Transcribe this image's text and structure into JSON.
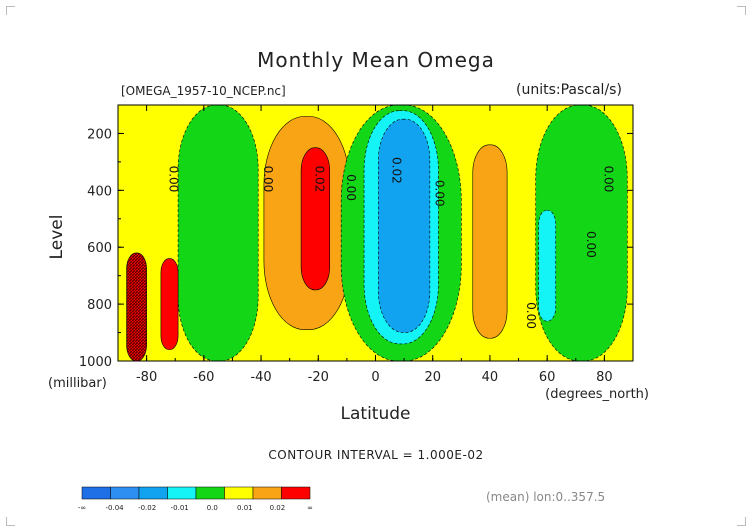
{
  "title": "Monthly Mean Omega",
  "file_label": "[OMEGA_1957-10_NCEP.nc]",
  "units_label": "(units:Pascal/s)",
  "contour_interval": "CONTOUR INTERVAL = 1.000E-02",
  "mean_note": "(mean) lon:0..357.5",
  "colors": {
    "bin_m_lt_m004": "#1f6fe6",
    "bin_m004_m003": "#2d8ff2",
    "bin_m003_m002": "#11a3ef",
    "bin_m002_m001": "#14f3f6",
    "bin_m001_0": "#12d616",
    "bin_0_001": "#ffff00",
    "bin_001_002": "#f8a414",
    "bin_002_plus": "#ff0000",
    "hatch": "#5a0000"
  },
  "colorbar": {
    "labels": [
      "-∞",
      "-0.04",
      "-0.02",
      "-0.01",
      "0.0",
      "0.01",
      "0.02",
      "∞"
    ],
    "colors": [
      "#1f6fe6",
      "#2d8ff2",
      "#11a3ef",
      "#14f3f6",
      "#12d616",
      "#ffff00",
      "#f8a414",
      "#ff0000"
    ]
  },
  "chart_data": {
    "type": "heatmap",
    "title": "Monthly Mean Omega",
    "xlabel": "Latitude",
    "xunits": "(degrees_north)",
    "ylabel": "Level",
    "yunits": "(millibar)",
    "xlim": [
      -90,
      90
    ],
    "ylim": [
      1000,
      100
    ],
    "y_inverted": true,
    "xticks": [
      -80,
      -60,
      -40,
      -20,
      0,
      20,
      40,
      60,
      80
    ],
    "yticks": [
      200,
      400,
      600,
      800,
      1000
    ],
    "contour_labels": [
      {
        "x": -72,
        "y": 360,
        "text": "0.00"
      },
      {
        "x": -39,
        "y": 360,
        "text": "0.00"
      },
      {
        "x": -21,
        "y": 360,
        "text": "0.02"
      },
      {
        "x": -10,
        "y": 390,
        "text": "0.00"
      },
      {
        "x": 6,
        "y": 330,
        "text": "0.02"
      },
      {
        "x": 21,
        "y": 410,
        "text": "0.00"
      },
      {
        "x": 80,
        "y": 360,
        "text": "0.00"
      },
      {
        "x": 74,
        "y": 590,
        "text": "0.00"
      },
      {
        "x": 53,
        "y": 840,
        "text": "0.00"
      }
    ],
    "features": [
      {
        "name": "background",
        "value": 0.005,
        "lat": [
          -90,
          90
        ],
        "lev": [
          100,
          1000
        ]
      },
      {
        "name": "descent_cell_south",
        "value": 0.015,
        "lat_center": -24,
        "lat_halfwidth": 15,
        "lev_top": 140,
        "lev_bottom": 890
      },
      {
        "name": "descent_core_south",
        "value": 0.025,
        "lat_center": -21,
        "lat_halfwidth": 5,
        "lev_top": 250,
        "lev_bottom": 750
      },
      {
        "name": "ascent_band_equatorial",
        "value": -0.005,
        "lat_center": 9,
        "lat_halfwidth": 21,
        "lev_top": 100,
        "lev_bottom": 1000
      },
      {
        "name": "ascent_core_equatorial",
        "value": -0.015,
        "lat_center": 9,
        "lat_halfwidth": 13,
        "lev_top": 120,
        "lev_bottom": 940
      },
      {
        "name": "ascent_max_equatorial",
        "value": -0.025,
        "lat_center": 10,
        "lat_halfwidth": 9,
        "lev_top": 150,
        "lev_bottom": 900
      },
      {
        "name": "descent_cell_north",
        "value": 0.015,
        "lat_center": 40,
        "lat_halfwidth": 6,
        "lev_top": 240,
        "lev_bottom": 920
      },
      {
        "name": "ascent_band_midlat_south",
        "value": -0.005,
        "lat_center": -55,
        "lat_halfwidth": 14,
        "lev_top": 100,
        "lev_bottom": 1000
      },
      {
        "name": "ascent_band_midlat_north",
        "value": -0.005,
        "lat_center": 72,
        "lat_halfwidth": 16,
        "lev_top": 100,
        "lev_bottom": 1000
      },
      {
        "name": "ascent_core_north",
        "value": -0.015,
        "lat_center": 60,
        "lat_halfwidth": 3,
        "lev_top": 470,
        "lev_bottom": 860
      },
      {
        "name": "descent_polar_south",
        "value": 0.025,
        "lat_center": -72,
        "lat_halfwidth": 3,
        "lev_top": 640,
        "lev_bottom": 960
      },
      {
        "name": "descent_polar_south_edge",
        "value": 0.045,
        "lat": [
          -87,
          -80
        ],
        "lev": [
          620,
          1000
        ]
      }
    ]
  }
}
